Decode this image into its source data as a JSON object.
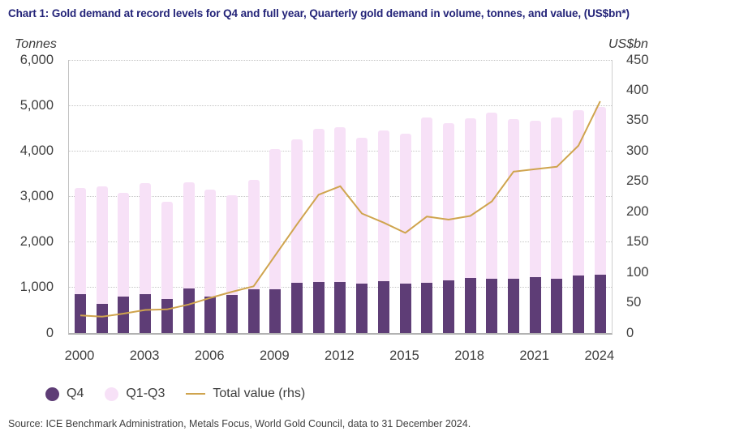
{
  "title": "Chart 1: Gold demand at record levels for Q4 and full year, Quarterly gold demand in volume, tonnes, and value, (US$bn*)",
  "axes": {
    "left_unit": "Tonnes",
    "right_unit": "US$bn",
    "left_tick_labels": [
      "6,000",
      "5,000",
      "4,000",
      "3,000",
      "2,000",
      "1,000",
      "0"
    ],
    "right_tick_labels": [
      "450",
      "400",
      "350",
      "300",
      "250",
      "200",
      "150",
      "100",
      "50",
      "0"
    ],
    "x_tick_labels": [
      "2000",
      "2003",
      "2006",
      "2009",
      "2012",
      "2015",
      "2018",
      "2021",
      "2024"
    ]
  },
  "legend": [
    {
      "label": "Q4",
      "swatch": "dot",
      "color": "#5e3d76"
    },
    {
      "label": "Q1-Q3",
      "swatch": "dot",
      "color": "#f7e1f7"
    },
    {
      "label": "Total value (rhs)",
      "swatch": "line",
      "color": "#cfa44e"
    }
  ],
  "source": "Source: ICE Benchmark Administration, Metals Focus, World Gold Council, data to 31 December 2024.",
  "colors": {
    "title": "#232378",
    "q4_bar": "#5e3d76",
    "q1q3_bar": "#f7e1f7",
    "value_line": "#cfa44e",
    "grid": "#c6c6c6",
    "axis_text": "#3f3f3f"
  },
  "chart_data": {
    "type": "bar",
    "subtype": "stacked-bars-with-line",
    "title": "Chart 1: Gold demand at record levels for Q4 and full year, Quarterly gold demand in volume, tonnes, and value, (US$bn*)",
    "categories": [
      2000,
      2001,
      2002,
      2003,
      2004,
      2005,
      2006,
      2007,
      2008,
      2009,
      2010,
      2011,
      2012,
      2013,
      2014,
      2015,
      2016,
      2017,
      2018,
      2019,
      2020,
      2021,
      2022,
      2023,
      2024
    ],
    "series": [
      {
        "name": "Q4",
        "type": "bar",
        "stack": "demand",
        "axis": "left",
        "values": [
          860,
          650,
          800,
          860,
          750,
          980,
          800,
          840,
          960,
          970,
          1100,
          1125,
          1125,
          1085,
          1140,
          1080,
          1110,
          1150,
          1210,
          1200,
          1200,
          1230,
          1200,
          1260,
          1290
        ]
      },
      {
        "name": "Q1-Q3",
        "type": "bar",
        "stack": "demand",
        "axis": "left",
        "values": [
          2330,
          2565,
          2285,
          2440,
          2140,
          2340,
          2355,
          2190,
          2400,
          3075,
          3160,
          3360,
          3395,
          3215,
          3320,
          3305,
          3630,
          3465,
          3510,
          3635,
          3500,
          3435,
          3535,
          3640,
          3685
        ]
      },
      {
        "name": "Total value (rhs)",
        "type": "line",
        "axis": "right",
        "values": [
          29,
          27,
          32,
          38,
          39,
          47,
          58,
          68,
          77,
          128,
          179,
          228,
          242,
          197,
          182,
          165,
          192,
          187,
          193,
          217,
          266,
          270,
          274,
          309,
          382
        ]
      }
    ],
    "left_axis": {
      "label": "Tonnes",
      "min": 0,
      "max": 6000,
      "step": 1000
    },
    "right_axis": {
      "label": "US$bn",
      "min": 0,
      "max": 450,
      "step": 50
    },
    "x_tick_labels": [
      2000,
      2003,
      2006,
      2009,
      2012,
      2015,
      2018,
      2021,
      2024
    ],
    "grid": "horizontal-dotted",
    "legend_position": "bottom-left"
  }
}
